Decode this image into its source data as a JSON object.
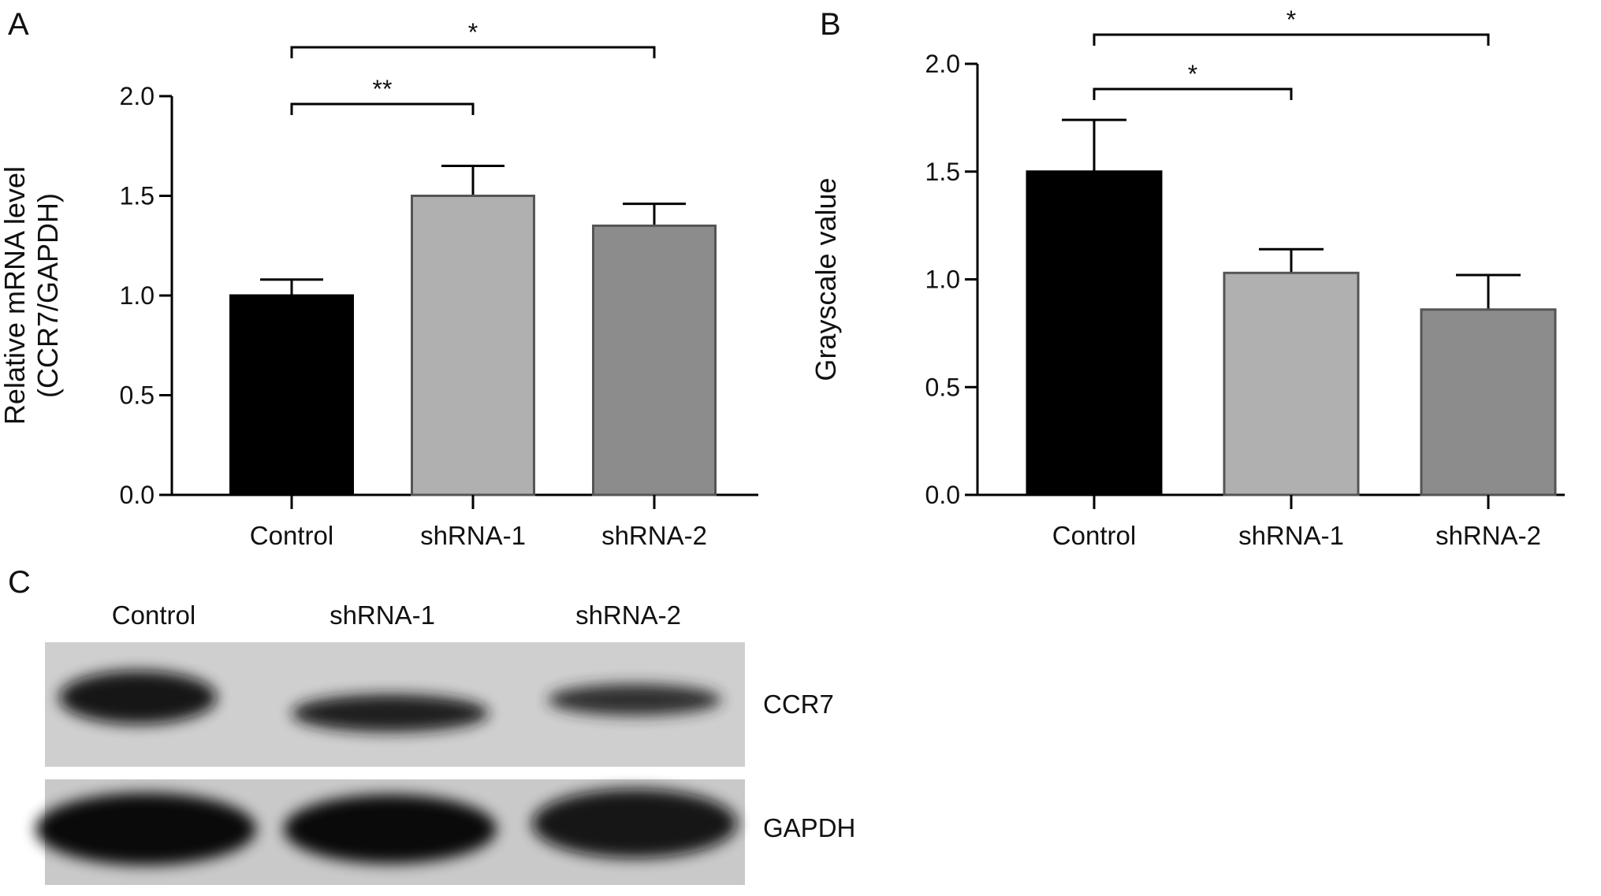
{
  "panels": [
    {
      "letter": "A"
    },
    {
      "letter": "B"
    },
    {
      "letter": "C"
    }
  ],
  "chart_data": [
    {
      "type": "bar",
      "panel": "A",
      "title": "",
      "xlabel": "",
      "ylabel": [
        "Relative mRNA level",
        "(CCR7/GAPDH)"
      ],
      "ylim": [
        0,
        2.0
      ],
      "yticks": [
        0.0,
        0.5,
        1.0,
        1.5,
        2.0
      ],
      "ytick_labels": [
        "0.0",
        "0.5",
        "1.0",
        "1.5",
        "2.0"
      ],
      "categories": [
        "Control",
        "shRNA-1",
        "shRNA-2"
      ],
      "values": [
        1.0,
        1.5,
        1.35
      ],
      "errors": [
        0.08,
        0.15,
        0.11
      ],
      "colors": [
        "#000000",
        "#b0b0b0",
        "#8c8c8c"
      ],
      "grid": false,
      "significance": [
        {
          "from": 0,
          "to": 1,
          "label": "**"
        },
        {
          "from": 0,
          "to": 2,
          "label": "*"
        }
      ]
    },
    {
      "type": "bar",
      "panel": "B",
      "title": "",
      "xlabel": "",
      "ylabel": [
        "Grayscale value"
      ],
      "ylim": [
        0,
        2.0
      ],
      "yticks": [
        0.0,
        0.5,
        1.0,
        1.5,
        2.0
      ],
      "ytick_labels": [
        "0.0",
        "0.5",
        "1.0",
        "1.5",
        "2.0"
      ],
      "categories": [
        "Control",
        "shRNA-1",
        "shRNA-2"
      ],
      "values": [
        1.5,
        1.03,
        0.86
      ],
      "errors": [
        0.24,
        0.11,
        0.16
      ],
      "colors": [
        "#000000",
        "#b0b0b0",
        "#8c8c8c"
      ],
      "grid": false,
      "significance": [
        {
          "from": 0,
          "to": 1,
          "label": "*"
        },
        {
          "from": 0,
          "to": 2,
          "label": "*"
        }
      ]
    }
  ],
  "blot": {
    "lanes": [
      "Control",
      "shRNA-1",
      "shRNA-2"
    ],
    "bands": [
      {
        "label": "CCR7",
        "intensity": [
          0.85,
          0.8,
          0.6
        ]
      },
      {
        "label": "GAPDH",
        "intensity": [
          0.95,
          0.95,
          0.92
        ]
      }
    ]
  }
}
